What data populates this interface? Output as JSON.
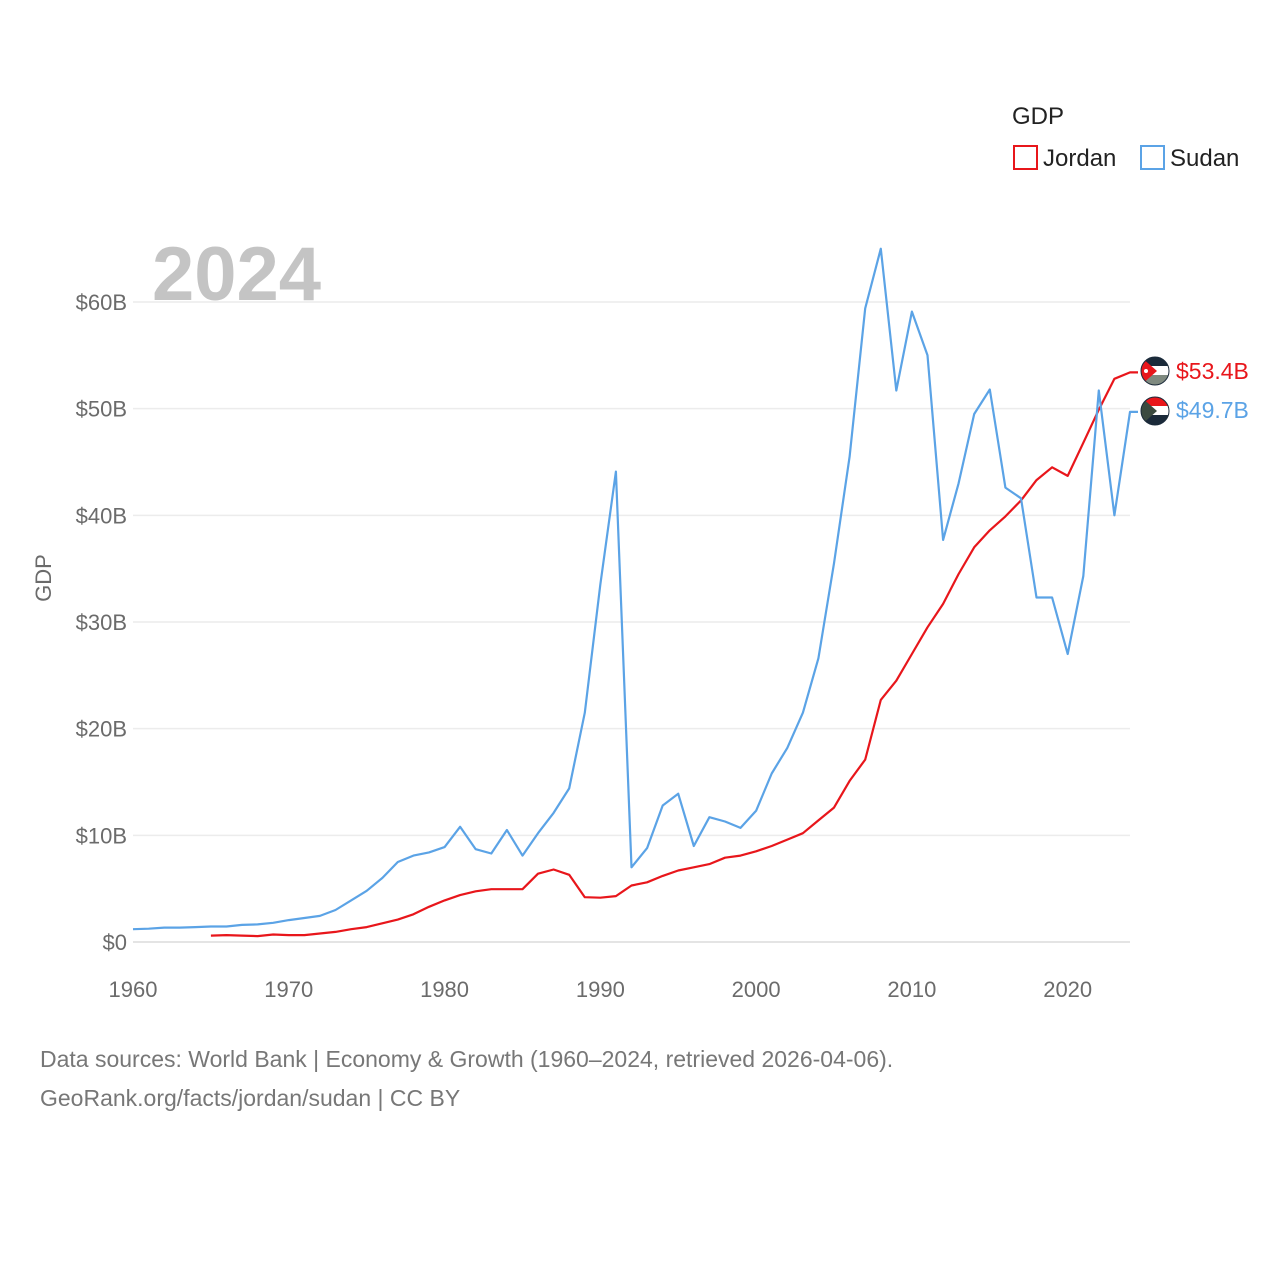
{
  "chart_data": {
    "type": "line",
    "year_label": "2024",
    "ylabel": "GDP",
    "legend_title": "GDP",
    "legend_position": "top-right",
    "x_ticks": [
      "1960",
      "1970",
      "1980",
      "1990",
      "2000",
      "2010",
      "2020"
    ],
    "y_ticks": [
      "$0",
      "$10B",
      "$20B",
      "$30B",
      "$40B",
      "$50B",
      "$60B"
    ],
    "xlim": [
      1960,
      2024
    ],
    "ylim": [
      0,
      60
    ],
    "grid": true,
    "series": [
      {
        "name": "Jordan",
        "color": "#e8161b",
        "end_label": "$53.4B",
        "flag": "jordan-flag",
        "x": [
          1965,
          1966,
          1967,
          1968,
          1969,
          1970,
          1971,
          1972,
          1973,
          1974,
          1975,
          1976,
          1977,
          1978,
          1979,
          1980,
          1981,
          1982,
          1983,
          1984,
          1985,
          1986,
          1987,
          1988,
          1989,
          1990,
          1991,
          1992,
          1993,
          1994,
          1995,
          1996,
          1997,
          1998,
          1999,
          2000,
          2001,
          2002,
          2003,
          2004,
          2005,
          2006,
          2007,
          2008,
          2009,
          2010,
          2011,
          2012,
          2013,
          2014,
          2015,
          2016,
          2017,
          2018,
          2019,
          2020,
          2021,
          2022,
          2023,
          2024
        ],
        "y": [
          0.6,
          0.65,
          0.6,
          0.55,
          0.7,
          0.65,
          0.65,
          0.8,
          0.95,
          1.2,
          1.4,
          1.75,
          2.1,
          2.6,
          3.3,
          3.9,
          4.4,
          4.75,
          4.95,
          4.95,
          4.95,
          6.4,
          6.8,
          6.3,
          4.2,
          4.15,
          4.3,
          5.3,
          5.6,
          6.2,
          6.7,
          7.0,
          7.3,
          7.9,
          8.1,
          8.5,
          9.0,
          9.6,
          10.2,
          11.4,
          12.6,
          15.1,
          17.1,
          22.7,
          24.5,
          27.0,
          29.5,
          31.7,
          34.5,
          37.0,
          38.6,
          39.9,
          41.4,
          43.3,
          44.5,
          43.7,
          46.8,
          49.9,
          52.8,
          53.4
        ]
      },
      {
        "name": "Sudan",
        "color": "#5ba3e6",
        "end_label": "$49.7B",
        "flag": "sudan-flag",
        "x": [
          1960,
          1961,
          1962,
          1963,
          1964,
          1965,
          1966,
          1967,
          1968,
          1969,
          1970,
          1971,
          1972,
          1973,
          1974,
          1975,
          1976,
          1977,
          1978,
          1979,
          1980,
          1981,
          1982,
          1983,
          1984,
          1985,
          1986,
          1987,
          1988,
          1989,
          1990,
          1991,
          1992,
          1993,
          1994,
          1995,
          1996,
          1997,
          1998,
          1999,
          2000,
          2001,
          2002,
          2003,
          2004,
          2005,
          2006,
          2007,
          2008,
          2009,
          2010,
          2011,
          2012,
          2013,
          2014,
          2015,
          2016,
          2017,
          2018,
          2019,
          2020,
          2021,
          2022,
          2023,
          2024
        ],
        "y": [
          1.2,
          1.25,
          1.35,
          1.35,
          1.4,
          1.45,
          1.45,
          1.6,
          1.65,
          1.8,
          2.05,
          2.25,
          2.45,
          3.0,
          3.9,
          4.8,
          6.0,
          7.5,
          8.1,
          8.4,
          8.9,
          10.8,
          8.7,
          8.3,
          10.5,
          8.1,
          10.2,
          12.1,
          14.4,
          21.5,
          33.5,
          44.1,
          7.0,
          8.8,
          12.8,
          13.9,
          9.0,
          11.7,
          11.3,
          10.7,
          12.3,
          15.8,
          18.2,
          21.5,
          26.6,
          35.5,
          45.5,
          59.4,
          65.0,
          51.7,
          59.1,
          55.0,
          37.7,
          43.0,
          49.5,
          51.8,
          42.6,
          41.6,
          32.3,
          32.3,
          27.0,
          34.3,
          51.7,
          40.0,
          49.7
        ]
      }
    ]
  },
  "footer": {
    "line1": "Data sources: World Bank | Economy & Growth (1960–2024, retrieved 2026-04-06).",
    "line2": "GeoRank.org/facts/jordan/sudan | CC BY"
  }
}
